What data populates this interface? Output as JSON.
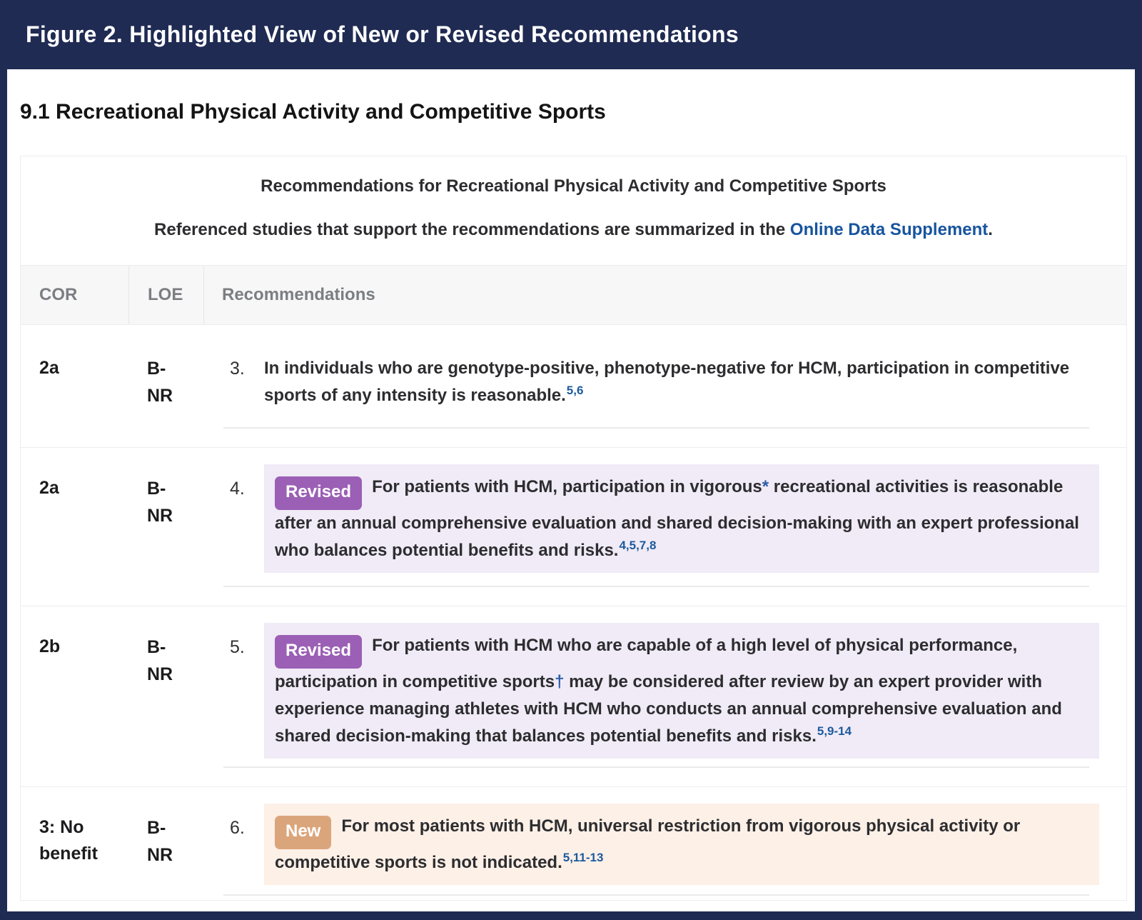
{
  "figure_header": {
    "title": "Figure 2. Highlighted View of New or Revised Recommendations"
  },
  "section_heading": "9.1 Recreational Physical Activity and Competitive Sports",
  "table": {
    "title": "Recommendations for Recreational Physical Activity and Competitive Sports",
    "subtitle_prefix": "Referenced studies that support the recommendations are summarized in the ",
    "subtitle_link": "Online Data Supplement",
    "subtitle_suffix": ".",
    "columns": {
      "cor": "COR",
      "loe": "LOE",
      "rec": "Recommendations"
    },
    "rows": [
      {
        "cor": "2a",
        "loe_line1": "B-",
        "loe_line2": "NR",
        "number": "3.",
        "badge": "",
        "highlight": "none",
        "text_before": "In individuals who are genotype-positive, phenotype-negative for HCM, participation in competitive sports of any intensity is reasonable.",
        "symbol": "",
        "text_after": "",
        "superscript": "5,6"
      },
      {
        "cor": "2a",
        "loe_line1": "B-",
        "loe_line2": "NR",
        "number": "4.",
        "badge": "Revised",
        "highlight": "revised",
        "text_before": "For patients with HCM, participation in vigorous",
        "symbol": "*",
        "text_after": " recreational activities is reasonable after an annual comprehensive evaluation and shared decision-making with an expert professional who balances potential benefits and risks.",
        "superscript": "4,5,7,8"
      },
      {
        "cor": "2b",
        "loe_line1": "B-",
        "loe_line2": "NR",
        "number": "5.",
        "badge": "Revised",
        "highlight": "revised",
        "text_before": "For patients with HCM who are capable of a high level of physical performance, participation in competitive sports",
        "symbol": "†",
        "text_after": " may be considered after review by an expert provider with experience managing athletes with HCM who conducts an annual comprehensive evaluation and shared decision-making that balances potential benefits and risks.",
        "superscript": "5,9-14"
      },
      {
        "cor": "3: No benefit",
        "loe_line1": "B-",
        "loe_line2": "NR",
        "number": "6.",
        "badge": "New",
        "highlight": "new",
        "text_before": "For most patients with HCM, universal restriction from vigorous physical activity or competitive sports is not indicated.",
        "symbol": "",
        "text_after": "",
        "superscript": "5,11-13"
      }
    ]
  },
  "colors": {
    "frame_navy": "#1f2b53",
    "link_blue": "#17549e",
    "citation_blue": "#1d5a9e",
    "revised_badge": "#9b5fb5",
    "revised_highlight": "#f0ebf6",
    "new_badge": "#dba57b",
    "new_highlight": "#fdf0e7",
    "header_gray_bg": "#f7f7f8",
    "header_gray_text": "#7b7e82"
  }
}
